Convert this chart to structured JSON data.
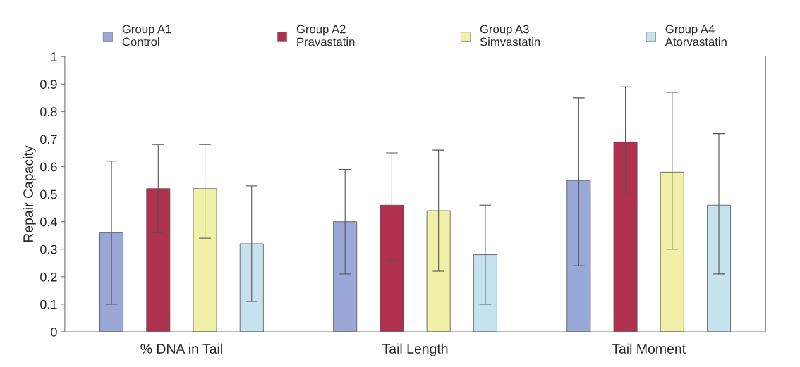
{
  "chart_data": {
    "type": "bar",
    "ylabel": "Repair Capacity",
    "categories": [
      "% DNA in Tail",
      "Tail Length",
      "Tail Moment"
    ],
    "series": [
      {
        "name": "Group A1\nControl",
        "color": "#9aa8d8",
        "values": [
          0.36,
          0.4,
          0.55
        ],
        "errors": [
          [
            0.1,
            0.62
          ],
          [
            0.21,
            0.59
          ],
          [
            0.24,
            0.85
          ]
        ]
      },
      {
        "name": "Group A2\nPravastatin",
        "color": "#b0304f",
        "values": [
          0.52,
          0.46,
          0.69
        ],
        "errors": [
          [
            0.36,
            0.68
          ],
          [
            0.26,
            0.65
          ],
          [
            0.5,
            0.89
          ]
        ]
      },
      {
        "name": "Group A3\nSimvastatin",
        "color": "#f0f0a8",
        "values": [
          0.52,
          0.44,
          0.58
        ],
        "errors": [
          [
            0.34,
            0.68
          ],
          [
            0.22,
            0.66
          ],
          [
            0.3,
            0.87
          ]
        ]
      },
      {
        "name": "Group A4\nAtorvastatin",
        "color": "#c6e2ee",
        "values": [
          0.32,
          0.28,
          0.46
        ],
        "errors": [
          [
            0.11,
            0.53
          ],
          [
            0.1,
            0.46
          ],
          [
            0.21,
            0.72
          ]
        ]
      }
    ],
    "ylim": [
      0,
      1
    ],
    "yticks": [
      0,
      0.1,
      0.2,
      0.3,
      0.4,
      0.5,
      0.6,
      0.7,
      0.8,
      0.9,
      1
    ],
    "grid": false,
    "legend": "top"
  }
}
